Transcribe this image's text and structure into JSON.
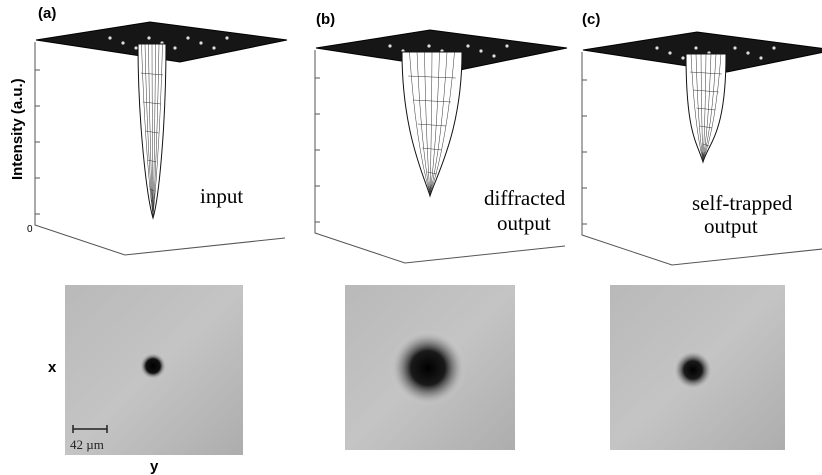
{
  "panels": [
    {
      "label": "(a)",
      "caption": [
        "input"
      ]
    },
    {
      "label": "(b)",
      "caption": [
        "diffracted",
        "output"
      ]
    },
    {
      "label": "(c)",
      "caption": [
        "self-trapped",
        "output"
      ]
    }
  ],
  "y_axis_label": "Intensity (a.u.)",
  "zero_tick": "0",
  "image_axes": {
    "x": "x",
    "y": "y"
  },
  "scale_bar": "42 µm"
}
